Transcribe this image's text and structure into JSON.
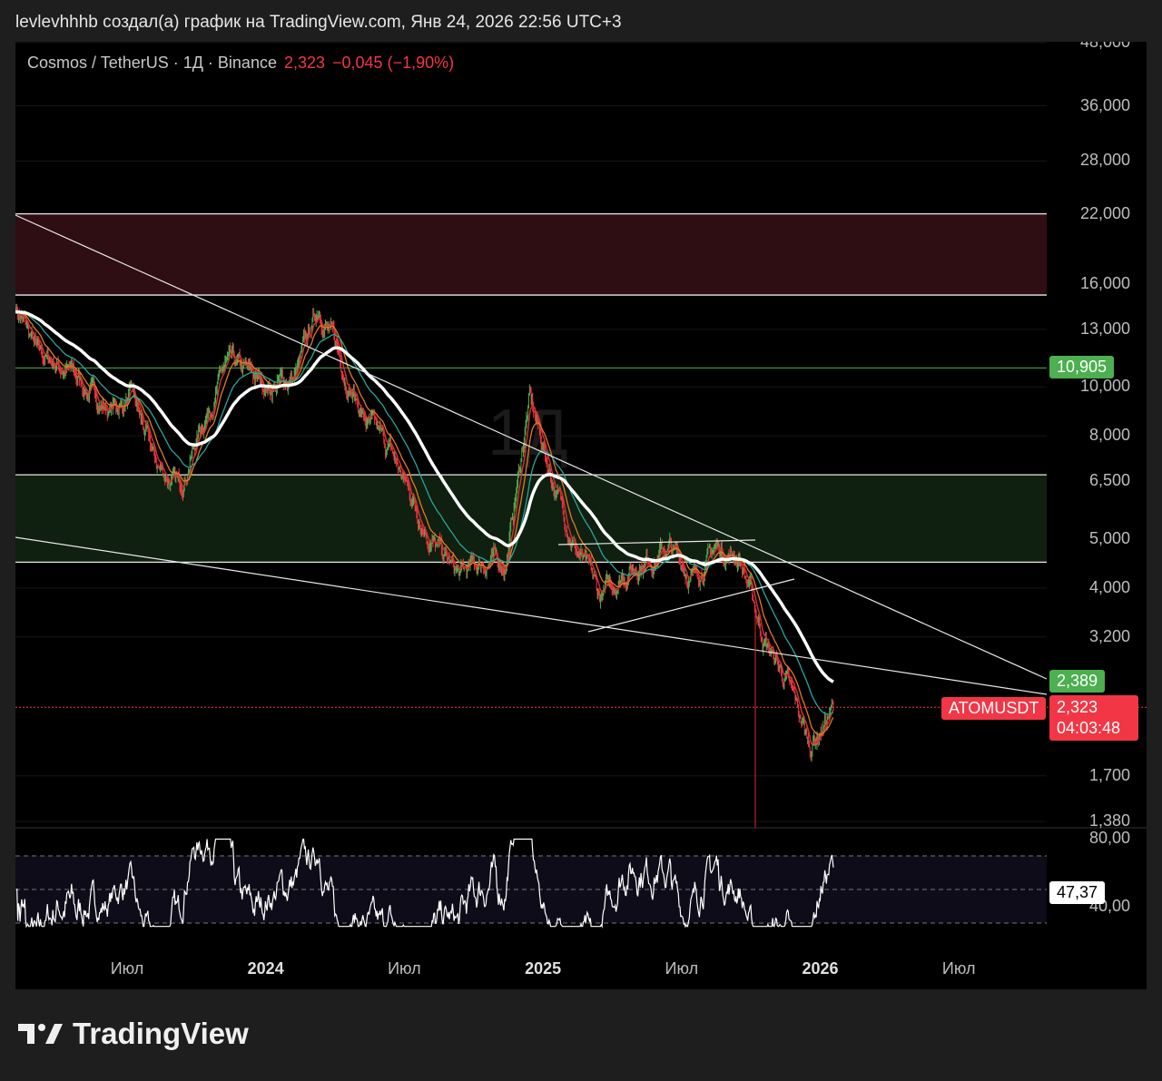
{
  "caption": "levlevhhhb создал(а) график на TradingView.com, Янв 24, 2026 22:56 UTC+3",
  "legend": {
    "symbol": "Cosmos / TetherUS · 1Д · Binance",
    "price": "2,323",
    "change": "−0,045 (−1,90%)"
  },
  "watermark": "1Д",
  "colors": {
    "up": "#4caf50",
    "down": "#f23645",
    "red_zone": "#2e0d13",
    "green_zone": "#0f1f10"
  },
  "price_axis": [
    {
      "v": 48,
      "t": "48,000"
    },
    {
      "v": 36,
      "t": "36,000"
    },
    {
      "v": 28,
      "t": "28,000"
    },
    {
      "v": 22,
      "t": "22,000"
    },
    {
      "v": 16,
      "t": "16,000"
    },
    {
      "v": 13,
      "t": "13,000"
    },
    {
      "v": 10,
      "t": "10,000"
    },
    {
      "v": 8,
      "t": "8,000"
    },
    {
      "v": 6.5,
      "t": "6,500"
    },
    {
      "v": 5,
      "t": "5,000"
    },
    {
      "v": 4,
      "t": "4,000"
    },
    {
      "v": 3.2,
      "t": "3,200"
    },
    {
      "v": 1.7,
      "t": "1,700"
    },
    {
      "v": 1.38,
      "t": "1,380"
    }
  ],
  "price_tags": {
    "level": "10,905",
    "ma": "2,389",
    "symbol": "ATOMUSDT",
    "last": "2,323",
    "countdown": "04:03:48"
  },
  "rsi_axis": {
    "upper": "80,00",
    "lower": "40,00",
    "value": "47,37"
  },
  "time_axis": [
    {
      "t": "Июл",
      "b": false
    },
    {
      "t": "2024",
      "b": true
    },
    {
      "t": "Июл",
      "b": false
    },
    {
      "t": "2025",
      "b": true
    },
    {
      "t": "Июл",
      "b": false
    },
    {
      "t": "2026",
      "b": true
    },
    {
      "t": "Июл",
      "b": false
    }
  ],
  "footer": {
    "brand": "TradingView"
  },
  "chart_data": {
    "type": "line",
    "title": "Cosmos / TetherUS · 1Д · Binance",
    "scale": "log",
    "ylim": [
      1.38,
      48
    ],
    "months": [
      "2023-02",
      "2023-03",
      "2023-04",
      "2023-05",
      "2023-06",
      "2023-07",
      "2023-08",
      "2023-09",
      "2023-10",
      "2023-11",
      "2023-12",
      "2024-01",
      "2024-02",
      "2024-03",
      "2024-04",
      "2024-05",
      "2024-06",
      "2024-07",
      "2024-08",
      "2024-09",
      "2024-10",
      "2024-11",
      "2024-12",
      "2025-01",
      "2025-02",
      "2025-03",
      "2025-04",
      "2025-05",
      "2025-06",
      "2025-07",
      "2025-08",
      "2025-09",
      "2025-10",
      "2025-11",
      "2025-12",
      "2026-01"
    ],
    "close": [
      14.5,
      11.5,
      11,
      10,
      9,
      9.5,
      7,
      6.3,
      8.5,
      11,
      10.5,
      10,
      10.5,
      14.5,
      11,
      8.5,
      7.5,
      6,
      4.8,
      4.2,
      4.5,
      4.5,
      9.5,
      6.5,
      4.8,
      3.8,
      4.3,
      4.6,
      4.8,
      4.2,
      4.8,
      4.6,
      3.2,
      2.6,
      1.95,
      2.323
    ],
    "zones": [
      {
        "name": "resistance",
        "from": 15.2,
        "to": 22
      },
      {
        "name": "support",
        "from": 4.5,
        "to": 6.7
      }
    ],
    "levels": [
      10.905
    ],
    "indicator": {
      "name": "RSI",
      "levels": [
        70,
        50,
        30
      ],
      "last": 47.37
    }
  }
}
